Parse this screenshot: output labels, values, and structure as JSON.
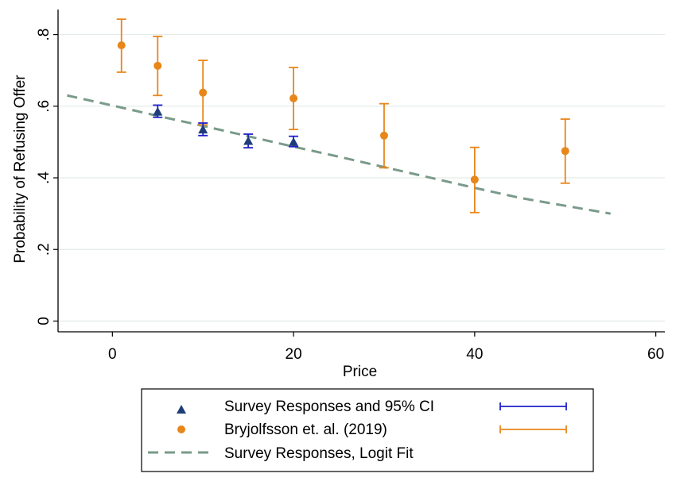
{
  "chart_data": {
    "type": "scatter",
    "xlabel": "Price",
    "ylabel": "Probability of Refusing Offer",
    "xlim": [
      -6,
      61
    ],
    "ylim": [
      -0.03,
      0.87
    ],
    "xticks": [
      {
        "value": 0,
        "label": "0"
      },
      {
        "value": 20,
        "label": "20"
      },
      {
        "value": 40,
        "label": "40"
      },
      {
        "value": 60,
        "label": "60"
      }
    ],
    "yticks": [
      {
        "value": 0,
        "label": "0"
      },
      {
        "value": 0.2,
        "label": ".2"
      },
      {
        "value": 0.4,
        "label": ".4"
      },
      {
        "value": 0.6,
        "label": ".6"
      },
      {
        "value": 0.8,
        "label": ".8"
      }
    ],
    "grid": true,
    "legend_position": "bottom",
    "series": [
      {
        "name": "Survey Responses and 95% CI",
        "marker": "triangle",
        "color": "#1f3d7a",
        "ci_color": "#1f1fcc",
        "points": [
          {
            "x": 5,
            "y": 0.585,
            "lo": 0.569,
            "hi": 0.603
          },
          {
            "x": 10,
            "y": 0.535,
            "lo": 0.518,
            "hi": 0.553
          },
          {
            "x": 15,
            "y": 0.503,
            "lo": 0.484,
            "hi": 0.522
          },
          {
            "x": 20,
            "y": 0.5,
            "lo": 0.487,
            "hi": 0.516
          }
        ]
      },
      {
        "name": "Bryjolfsson et. al. (2019)",
        "marker": "circle",
        "color": "#e8861a",
        "ci_color": "#e8861a",
        "points": [
          {
            "x": 1,
            "y": 0.77,
            "lo": 0.695,
            "hi": 0.843
          },
          {
            "x": 5,
            "y": 0.713,
            "lo": 0.63,
            "hi": 0.795
          },
          {
            "x": 10,
            "y": 0.638,
            "lo": 0.548,
            "hi": 0.728
          },
          {
            "x": 20,
            "y": 0.622,
            "lo": 0.535,
            "hi": 0.708
          },
          {
            "x": 30,
            "y": 0.518,
            "lo": 0.428,
            "hi": 0.607
          },
          {
            "x": 40,
            "y": 0.395,
            "lo": 0.303,
            "hi": 0.485
          },
          {
            "x": 50,
            "y": 0.475,
            "lo": 0.385,
            "hi": 0.564
          }
        ]
      },
      {
        "name": "Survey Responses, Logit Fit",
        "style": "dashed-line",
        "color": "#7a9a8a",
        "x": [
          -5,
          0,
          5,
          10,
          15,
          20,
          25,
          30,
          35,
          40,
          45,
          50,
          55
        ],
        "y": [
          0.63,
          0.602,
          0.573,
          0.545,
          0.516,
          0.487,
          0.459,
          0.43,
          0.401,
          0.372,
          0.344,
          0.322,
          0.3
        ]
      }
    ]
  }
}
